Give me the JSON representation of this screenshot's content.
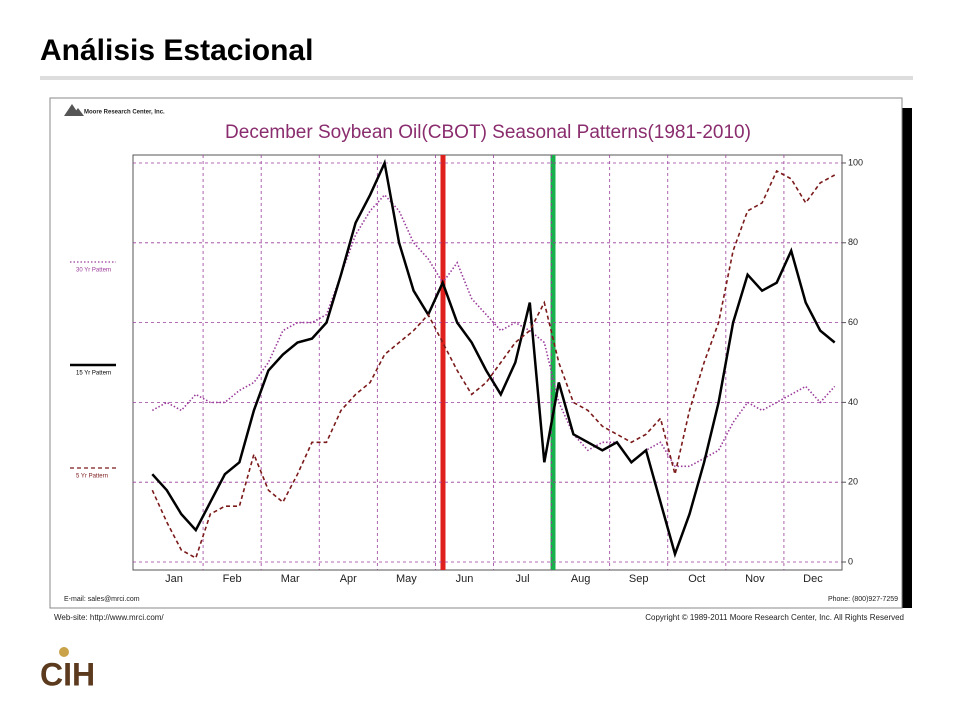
{
  "header": {
    "title": "Análisis Estacional"
  },
  "chart_data": {
    "type": "line",
    "title": "December Soybean Oil(CBOT) Seasonal Patterns(1981-2010)",
    "publisher": "Moore Research Center, Inc.",
    "categories": [
      null,
      null,
      "Jan",
      null,
      null,
      null,
      "Feb",
      null,
      null,
      null,
      "Mar",
      null,
      null,
      null,
      "Apr",
      null,
      null,
      null,
      "May",
      null,
      null,
      null,
      "Jun",
      null,
      null,
      null,
      "Jul",
      null,
      null,
      null,
      "Aug",
      null,
      null,
      null,
      "Sep",
      null,
      null,
      null,
      "Oct",
      null,
      null,
      null,
      "Nov",
      null,
      null,
      null,
      "Dec",
      null
    ],
    "series": [
      {
        "name": "30 Yr Pattern",
        "color": "#9b3c9b",
        "style": "dotted",
        "values": [
          38,
          40,
          38,
          42,
          40,
          40,
          43,
          45,
          50,
          58,
          60,
          60,
          62,
          72,
          82,
          88,
          92,
          88,
          80,
          76,
          70,
          75,
          66,
          62,
          58,
          60,
          58,
          55,
          40,
          32,
          28,
          30,
          30,
          25,
          28,
          30,
          24,
          24,
          26,
          28,
          35,
          40,
          38,
          40,
          42,
          44,
          40,
          44
        ]
      },
      {
        "name": "15 Yr Pattern",
        "color": "#000000",
        "style": "solid",
        "values": [
          22,
          18,
          12,
          8,
          15,
          22,
          25,
          38,
          48,
          52,
          55,
          56,
          60,
          72,
          85,
          92,
          100,
          80,
          68,
          62,
          70,
          60,
          55,
          48,
          42,
          50,
          65,
          25,
          45,
          32,
          30,
          28,
          30,
          25,
          28,
          15,
          2,
          12,
          25,
          40,
          60,
          72,
          68,
          70,
          78,
          65,
          58,
          55
        ]
      },
      {
        "name": "5 Yr Pattern",
        "color": "#7b1a1a",
        "style": "dashed",
        "values": [
          18,
          10,
          3,
          1,
          12,
          14,
          14,
          27,
          18,
          15,
          22,
          30,
          30,
          38,
          42,
          45,
          52,
          55,
          58,
          62,
          55,
          48,
          42,
          45,
          50,
          55,
          58,
          65,
          50,
          40,
          38,
          34,
          32,
          30,
          32,
          36,
          22,
          38,
          50,
          60,
          78,
          88,
          90,
          98,
          96,
          90,
          95,
          97
        ]
      }
    ],
    "ylim": [
      -2,
      102
    ],
    "yticks": [
      0,
      20,
      40,
      60,
      80,
      100
    ],
    "grid": true,
    "email": "E-mail: sales@mrci.com",
    "phone": "Phone: (800)927-7259",
    "website": "Web-site: http://www.mrci.com/",
    "copyright": "Copyright © 1989-2011 Moore Research Center, Inc. All Rights Reserved"
  },
  "footer": {
    "logo": "CIH"
  }
}
